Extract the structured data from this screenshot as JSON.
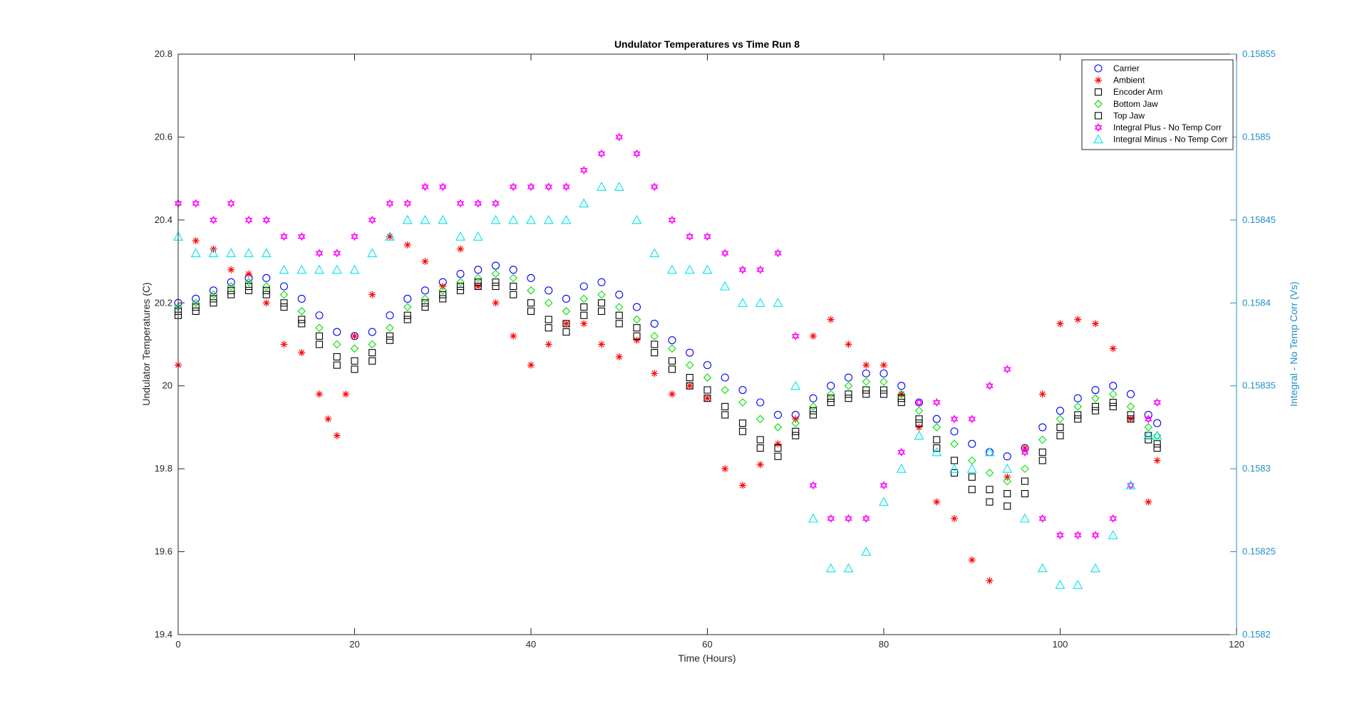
{
  "chart_data": {
    "type": "scatter",
    "title": "Undulator Temperatures vs Time Run 8",
    "xlabel": "Time (Hours)",
    "ylabel": "Undulator Temperatures (C)",
    "y2label": "Integral -  No Temp Corr (Vs)",
    "xlim": [
      0,
      120
    ],
    "ylim": [
      19.4,
      20.8
    ],
    "y2lim": [
      0.1582,
      0.15855
    ],
    "xticks": [
      "0",
      "20",
      "40",
      "60",
      "80",
      "100",
      "120"
    ],
    "yticks": [
      "19.4",
      "19.6",
      "19.8",
      "20",
      "20.2",
      "20.4",
      "20.6",
      "20.8"
    ],
    "y2ticks": [
      "0.1582",
      "0.15825",
      "0.1583",
      "0.15835",
      "0.1584",
      "0.15845",
      "0.1585",
      "0.15855"
    ],
    "grid": false,
    "legend_position": "top-right",
    "colors": {
      "axis_left": "#262626",
      "axis_right": "#1f8fc8"
    },
    "series": [
      {
        "name": "Carrier",
        "axis": "left",
        "marker": "circle",
        "color": "#0000ff",
        "x": [
          0,
          2,
          4,
          6,
          8,
          10,
          12,
          14,
          16,
          18,
          20,
          22,
          24,
          26,
          28,
          30,
          32,
          34,
          36,
          38,
          40,
          42,
          44,
          46,
          48,
          50,
          52,
          54,
          56,
          58,
          60,
          62,
          64,
          66,
          68,
          70,
          72,
          74,
          76,
          78,
          80,
          82,
          84,
          86,
          88,
          90,
          92,
          94,
          96,
          98,
          100,
          102,
          104,
          106,
          108,
          110,
          111
        ],
        "y": [
          20.2,
          20.21,
          20.23,
          20.25,
          20.26,
          20.26,
          20.24,
          20.21,
          20.17,
          20.13,
          20.12,
          20.13,
          20.17,
          20.21,
          20.23,
          20.25,
          20.27,
          20.28,
          20.29,
          20.28,
          20.26,
          20.23,
          20.21,
          20.24,
          20.25,
          20.22,
          20.19,
          20.15,
          20.11,
          20.08,
          20.05,
          20.02,
          19.99,
          19.96,
          19.93,
          19.93,
          19.97,
          20.0,
          20.02,
          20.03,
          20.03,
          20.0,
          19.96,
          19.92,
          19.89,
          19.86,
          19.84,
          19.83,
          19.85,
          19.9,
          19.94,
          19.97,
          19.99,
          20.0,
          19.98,
          19.93,
          19.91
        ]
      },
      {
        "name": "Ambient",
        "axis": "left",
        "marker": "asterisk",
        "color": "#ff0000",
        "x": [
          0,
          2,
          4,
          6,
          8,
          10,
          12,
          14,
          16,
          17,
          18,
          19,
          20,
          22,
          24,
          26,
          28,
          30,
          32,
          34,
          36,
          38,
          40,
          42,
          44,
          46,
          48,
          50,
          52,
          54,
          56,
          58,
          60,
          62,
          64,
          66,
          68,
          70,
          72,
          74,
          76,
          78,
          80,
          82,
          84,
          86,
          88,
          90,
          92,
          94,
          96,
          98,
          100,
          102,
          104,
          106,
          108,
          110,
          111
        ],
        "y": [
          20.05,
          20.35,
          20.33,
          20.28,
          20.27,
          20.2,
          20.1,
          20.08,
          19.98,
          19.92,
          19.88,
          19.98,
          20.12,
          20.22,
          20.36,
          20.34,
          20.3,
          20.24,
          20.33,
          20.24,
          20.2,
          20.12,
          20.05,
          20.1,
          20.15,
          20.15,
          20.1,
          20.07,
          20.11,
          20.03,
          19.98,
          20.0,
          19.97,
          19.8,
          19.76,
          19.81,
          19.86,
          19.92,
          20.12,
          20.16,
          20.1,
          20.05,
          20.05,
          19.98,
          19.9,
          19.72,
          19.68,
          19.58,
          19.53,
          19.78,
          19.85,
          19.98,
          20.15,
          20.16,
          20.15,
          20.09,
          19.92,
          19.72,
          19.82
        ]
      },
      {
        "name": "Encoder Arm",
        "axis": "left",
        "marker": "square",
        "color": "#000000",
        "x": [
          0,
          2,
          4,
          6,
          8,
          10,
          12,
          14,
          16,
          18,
          20,
          22,
          24,
          26,
          28,
          30,
          32,
          34,
          36,
          38,
          40,
          42,
          44,
          46,
          48,
          50,
          52,
          54,
          56,
          58,
          60,
          62,
          64,
          66,
          68,
          70,
          72,
          74,
          76,
          78,
          80,
          82,
          84,
          86,
          88,
          90,
          92,
          94,
          96,
          98,
          100,
          102,
          104,
          106,
          108,
          110,
          111
        ],
        "y": [
          20.17,
          20.18,
          20.2,
          20.22,
          20.23,
          20.22,
          20.19,
          20.15,
          20.1,
          20.05,
          20.04,
          20.06,
          20.11,
          20.16,
          20.19,
          20.21,
          20.23,
          20.24,
          20.24,
          20.22,
          20.18,
          20.14,
          20.13,
          20.17,
          20.18,
          20.15,
          20.12,
          20.08,
          20.04,
          20.0,
          19.97,
          19.93,
          19.89,
          19.85,
          19.83,
          19.88,
          19.93,
          19.96,
          19.97,
          19.98,
          19.98,
          19.96,
          19.91,
          19.85,
          19.79,
          19.75,
          19.72,
          19.71,
          19.74,
          19.82,
          19.88,
          19.92,
          19.94,
          19.95,
          19.92,
          19.87,
          19.85
        ]
      },
      {
        "name": "Bottom Jaw",
        "axis": "left",
        "marker": "diamond",
        "color": "#00e000",
        "x": [
          0,
          2,
          4,
          6,
          8,
          10,
          12,
          14,
          16,
          18,
          20,
          22,
          24,
          26,
          28,
          30,
          32,
          34,
          36,
          38,
          40,
          42,
          44,
          46,
          48,
          50,
          52,
          54,
          56,
          58,
          60,
          62,
          64,
          66,
          68,
          70,
          72,
          74,
          76,
          78,
          80,
          82,
          84,
          86,
          88,
          90,
          92,
          94,
          96,
          98,
          100,
          102,
          104,
          106,
          108,
          110,
          111
        ],
        "y": [
          20.19,
          20.2,
          20.22,
          20.24,
          20.25,
          20.24,
          20.22,
          20.18,
          20.14,
          20.1,
          20.09,
          20.1,
          20.14,
          20.19,
          20.21,
          20.23,
          20.25,
          20.26,
          20.27,
          20.26,
          20.23,
          20.2,
          20.18,
          20.21,
          20.22,
          20.19,
          20.16,
          20.12,
          20.09,
          20.05,
          20.02,
          19.99,
          19.96,
          19.92,
          19.9,
          19.91,
          19.95,
          19.98,
          20.0,
          20.01,
          20.01,
          19.98,
          19.94,
          19.9,
          19.86,
          19.82,
          19.79,
          19.77,
          19.8,
          19.87,
          19.92,
          19.95,
          19.97,
          19.98,
          19.95,
          19.9,
          19.88
        ]
      },
      {
        "name": "Top Jaw",
        "axis": "left",
        "marker": "square",
        "color": "#000000",
        "x": [
          0,
          2,
          4,
          6,
          8,
          10,
          12,
          14,
          16,
          18,
          20,
          22,
          24,
          26,
          28,
          30,
          32,
          34,
          36,
          38,
          40,
          42,
          44,
          46,
          48,
          50,
          52,
          54,
          56,
          58,
          60,
          62,
          64,
          66,
          68,
          70,
          72,
          74,
          76,
          78,
          80,
          82,
          84,
          86,
          88,
          90,
          92,
          94,
          96,
          98,
          100,
          102,
          104,
          106,
          108,
          110,
          111
        ],
        "y": [
          20.18,
          20.19,
          20.21,
          20.23,
          20.24,
          20.23,
          20.2,
          20.16,
          20.12,
          20.07,
          20.06,
          20.08,
          20.12,
          20.17,
          20.2,
          20.22,
          20.24,
          20.25,
          20.25,
          20.24,
          20.2,
          20.16,
          20.15,
          20.19,
          20.2,
          20.17,
          20.14,
          20.1,
          20.06,
          20.02,
          19.99,
          19.95,
          19.91,
          19.87,
          19.85,
          19.89,
          19.94,
          19.97,
          19.98,
          19.99,
          19.99,
          19.97,
          19.92,
          19.87,
          19.82,
          19.78,
          19.75,
          19.74,
          19.77,
          19.84,
          19.9,
          19.93,
          19.95,
          19.96,
          19.93,
          19.88,
          19.86
        ]
      },
      {
        "name": "Integral Plus -  No Temp Corr",
        "axis": "right",
        "marker": "hexagram",
        "color": "#ff00ff",
        "x": [
          0,
          2,
          4,
          6,
          8,
          10,
          12,
          14,
          16,
          18,
          20,
          22,
          24,
          26,
          28,
          30,
          32,
          34,
          36,
          38,
          40,
          42,
          44,
          46,
          48,
          50,
          52,
          54,
          56,
          58,
          60,
          62,
          64,
          66,
          68,
          70,
          72,
          74,
          76,
          78,
          80,
          82,
          84,
          86,
          88,
          90,
          92,
          94,
          96,
          98,
          100,
          102,
          104,
          106,
          108,
          110,
          111
        ],
        "y": [
          0.15846,
          0.15846,
          0.15845,
          0.15846,
          0.15845,
          0.15845,
          0.15844,
          0.15844,
          0.15843,
          0.15843,
          0.15844,
          0.15845,
          0.15846,
          0.15846,
          0.15847,
          0.15847,
          0.15846,
          0.15846,
          0.15846,
          0.15847,
          0.15847,
          0.15847,
          0.15847,
          0.15848,
          0.15849,
          0.1585,
          0.15849,
          0.15847,
          0.15845,
          0.15844,
          0.15844,
          0.15843,
          0.15842,
          0.15842,
          0.15843,
          0.15838,
          0.15829,
          0.15827,
          0.15827,
          0.15827,
          0.15829,
          0.15831,
          0.15834,
          0.15834,
          0.15833,
          0.15833,
          0.15835,
          0.15836,
          0.15831,
          0.15827,
          0.15826,
          0.15826,
          0.15826,
          0.15827,
          0.15829,
          0.15833,
          0.15834
        ]
      },
      {
        "name": "Integral Minus -  No Temp Corr",
        "axis": "right",
        "marker": "triangle",
        "color": "#00e5e5",
        "x": [
          0,
          2,
          4,
          6,
          8,
          10,
          12,
          14,
          16,
          18,
          20,
          22,
          24,
          26,
          28,
          30,
          32,
          34,
          36,
          38,
          40,
          42,
          44,
          46,
          48,
          50,
          52,
          54,
          56,
          58,
          60,
          62,
          64,
          66,
          68,
          70,
          72,
          74,
          76,
          78,
          80,
          82,
          84,
          86,
          88,
          90,
          92,
          94,
          96,
          98,
          100,
          102,
          104,
          106,
          108,
          110,
          111
        ],
        "y": [
          0.15844,
          0.15843,
          0.15843,
          0.15843,
          0.15843,
          0.15843,
          0.15842,
          0.15842,
          0.15842,
          0.15842,
          0.15842,
          0.15843,
          0.15844,
          0.15845,
          0.15845,
          0.15845,
          0.15844,
          0.15844,
          0.15845,
          0.15845,
          0.15845,
          0.15845,
          0.15845,
          0.15846,
          0.15847,
          0.15847,
          0.15845,
          0.15843,
          0.15842,
          0.15842,
          0.15842,
          0.15841,
          0.1584,
          0.1584,
          0.1584,
          0.15835,
          0.15827,
          0.15824,
          0.15824,
          0.15825,
          0.15828,
          0.1583,
          0.15832,
          0.15831,
          0.1583,
          0.1583,
          0.15831,
          0.1583,
          0.15827,
          0.15824,
          0.15823,
          0.15823,
          0.15824,
          0.15826,
          0.15829,
          0.15832,
          0.15832
        ]
      }
    ]
  }
}
